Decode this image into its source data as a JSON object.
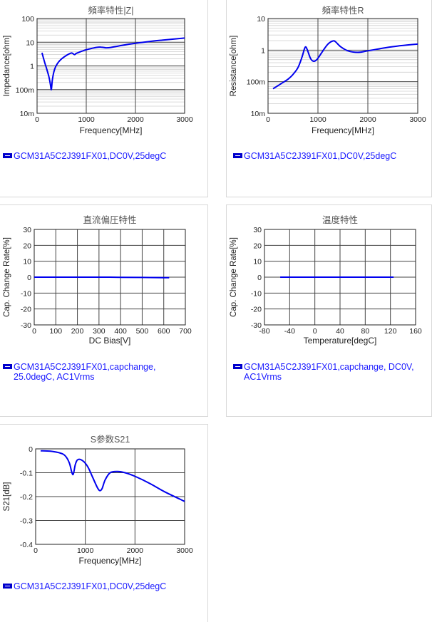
{
  "chart_data": [
    {
      "id": "impedance",
      "type": "line",
      "title": "頻率特性|Z|",
      "xlabel": "Frequency[MHz]",
      "ylabel": "Impedance[ohm]",
      "xscale": "linear",
      "yscale": "log",
      "xlim": [
        0,
        3000
      ],
      "ylim": [
        0.01,
        100
      ],
      "xticks": [
        0,
        1000,
        2000,
        3000
      ],
      "xtick_labels": [
        "0",
        "1000",
        "2000",
        "3000"
      ],
      "yticks": [
        0.01,
        0.1,
        1,
        10,
        100
      ],
      "ytick_labels": [
        "10m",
        "100m",
        "1",
        "10",
        "100"
      ],
      "grid": true,
      "series": [
        {
          "color": "#0000ee",
          "x": [
            100,
            150,
            200,
            240,
            270,
            290,
            310,
            340,
            380,
            430,
            500,
            600,
            700,
            760,
            800,
            900,
            1000,
            1100,
            1200,
            1300,
            1400,
            1500,
            1700,
            2000,
            2300,
            2600,
            3000
          ],
          "y": [
            3.6,
            1.5,
            0.7,
            0.35,
            0.17,
            0.1,
            0.25,
            0.55,
            0.95,
            1.4,
            2.0,
            2.8,
            3.5,
            3.0,
            3.4,
            4.1,
            4.8,
            5.4,
            6.0,
            6.2,
            5.8,
            6.0,
            7.2,
            9.0,
            10.8,
            12.5,
            15.0
          ]
        }
      ]
    },
    {
      "id": "resistance",
      "type": "line",
      "title": "頻率特性R",
      "xlabel": "Frequency[MHz]",
      "ylabel": "Resistance[ohm]",
      "xscale": "linear",
      "yscale": "log",
      "xlim": [
        0,
        3000
      ],
      "ylim": [
        0.01,
        10
      ],
      "xticks": [
        0,
        1000,
        2000,
        3000
      ],
      "xtick_labels": [
        "0",
        "1000",
        "2000",
        "3000"
      ],
      "yticks": [
        0.01,
        0.1,
        1,
        10
      ],
      "ytick_labels": [
        "10m",
        "100m",
        "1",
        "10"
      ],
      "grid": true,
      "series": [
        {
          "color": "#0000ee",
          "x": [
            100,
            200,
            300,
            400,
            500,
            600,
            680,
            730,
            760,
            800,
            850,
            900,
            950,
            1000,
            1100,
            1200,
            1300,
            1350,
            1450,
            1600,
            1800,
            2000,
            2300,
            2600,
            3000
          ],
          "y": [
            0.06,
            0.075,
            0.095,
            0.12,
            0.17,
            0.28,
            0.6,
            1.1,
            1.25,
            0.9,
            0.55,
            0.45,
            0.46,
            0.55,
            0.95,
            1.55,
            1.95,
            1.85,
            1.3,
            0.95,
            0.85,
            0.95,
            1.15,
            1.35,
            1.55
          ]
        }
      ]
    },
    {
      "id": "dc-bias",
      "type": "line",
      "title": "直流偏圧特性",
      "xlabel": "DC Bias[V]",
      "ylabel": "Cap. Change Rate[%]",
      "xlim": [
        0,
        700
      ],
      "ylim": [
        -30,
        30
      ],
      "xticks": [
        0,
        100,
        200,
        300,
        400,
        500,
        600,
        700
      ],
      "xtick_labels": [
        "0",
        "100",
        "200",
        "300",
        "400",
        "500",
        "600",
        "700"
      ],
      "yticks": [
        -30,
        -20,
        -10,
        0,
        10,
        20,
        30
      ],
      "ytick_labels": [
        "-30",
        "-20",
        "-10",
        "0",
        "10",
        "20",
        "30"
      ],
      "grid": true,
      "series": [
        {
          "color": "#0000ee",
          "x": [
            0,
            100,
            200,
            300,
            400,
            500,
            600,
            625
          ],
          "y": [
            0,
            0,
            0,
            0,
            -0.1,
            -0.2,
            -0.3,
            -0.3
          ]
        }
      ]
    },
    {
      "id": "temperature",
      "type": "line",
      "title": "温度特性",
      "xlabel": "Temperature[degC]",
      "ylabel": "Cap. Change Rate[%]",
      "xlim": [
        -80,
        160
      ],
      "ylim": [
        -30,
        30
      ],
      "xticks": [
        -80,
        -40,
        0,
        40,
        80,
        120,
        160
      ],
      "xtick_labels": [
        "-80",
        "-40",
        "0",
        "40",
        "80",
        "120",
        "160"
      ],
      "yticks": [
        -30,
        -20,
        -10,
        0,
        10,
        20,
        30
      ],
      "ytick_labels": [
        "-30",
        "-20",
        "-10",
        "0",
        "10",
        "20",
        "30"
      ],
      "grid": true,
      "series": [
        {
          "color": "#0000ee",
          "x": [
            -55,
            0,
            25,
            85,
            125
          ],
          "y": [
            0,
            0,
            0,
            0,
            0
          ]
        }
      ]
    },
    {
      "id": "s21",
      "type": "line",
      "title": "S参数S21",
      "xlabel": "Frequency[MHz]",
      "ylabel": "S21[dB]",
      "xlim": [
        0,
        3000
      ],
      "ylim": [
        -0.4,
        0
      ],
      "xticks": [
        0,
        1000,
        2000,
        3000
      ],
      "xtick_labels": [
        "0",
        "1000",
        "2000",
        "3000"
      ],
      "yticks": [
        -0.4,
        -0.3,
        -0.2,
        -0.1,
        0
      ],
      "ytick_labels": [
        "-0.4",
        "-0.3",
        "-0.2",
        "-0.1",
        "0"
      ],
      "grid": true,
      "series": [
        {
          "color": "#0000ee",
          "x": [
            100,
            300,
            500,
            600,
            680,
            730,
            760,
            800,
            850,
            950,
            1050,
            1150,
            1250,
            1300,
            1340,
            1400,
            1500,
            1650,
            1800,
            2000,
            2300,
            2600,
            3000
          ],
          "y": [
            -0.008,
            -0.01,
            -0.018,
            -0.03,
            -0.06,
            -0.1,
            -0.105,
            -0.065,
            -0.045,
            -0.05,
            -0.075,
            -0.12,
            -0.165,
            -0.175,
            -0.165,
            -0.13,
            -0.1,
            -0.095,
            -0.1,
            -0.115,
            -0.145,
            -0.18,
            -0.22
          ]
        }
      ]
    }
  ],
  "legends": {
    "impedance": [
      "GCM31A5C2J391FX01,DC0V,25degC"
    ],
    "resistance": [
      "GCM31A5C2J391FX01,DC0V,25degC"
    ],
    "dc_bias": [
      "GCM31A5C2J391FX01,capchange,",
      "25.0degC, AC1Vrms"
    ],
    "temperature": [
      "GCM31A5C2J391FX01,capchange, DC0V,",
      "AC1Vrms"
    ],
    "s21": [
      "GCM31A5C2J391FX01,DC0V,25degC"
    ]
  }
}
